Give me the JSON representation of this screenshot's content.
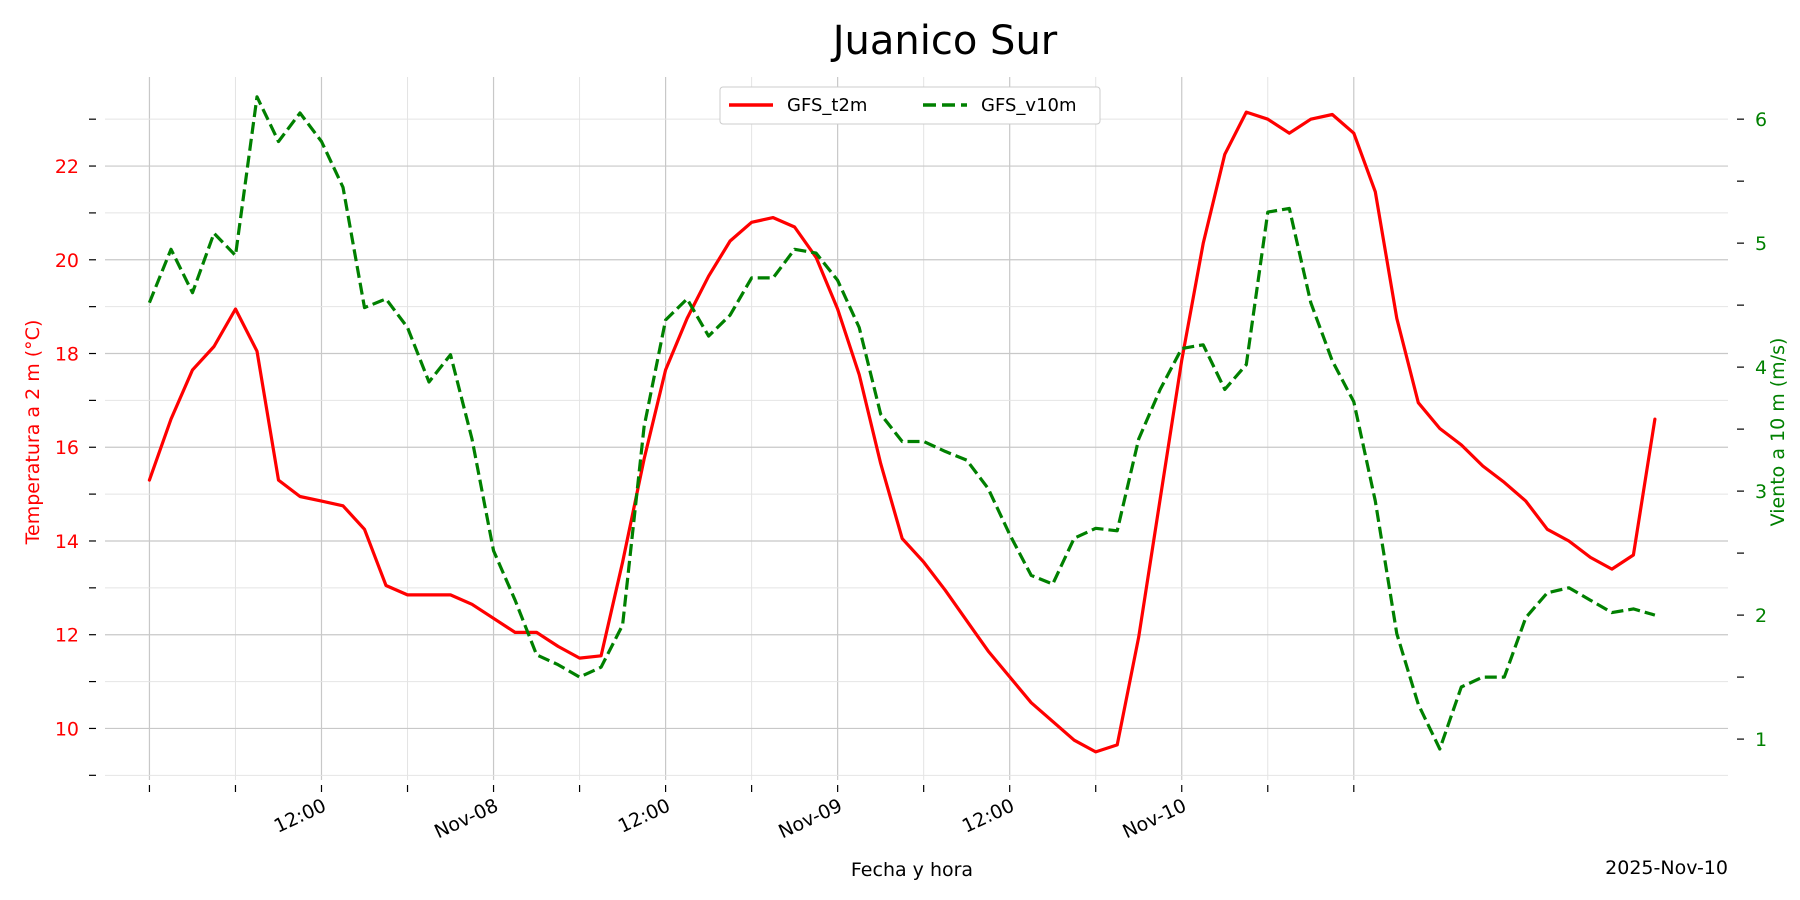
{
  "chart_data": {
    "type": "line",
    "title": "Juanico Sur",
    "xlabel": "Fecha y hora",
    "ylabel_left": "Temperatura a 2 m (°C)",
    "ylabel_right": "Viento a 10 m (m/s)",
    "corner_date": "2025-Nov-10",
    "x_start": "2025-11-07 09:00",
    "x_step_hours": 1.5,
    "ylim_left": [
      8.9,
      23.9
    ],
    "ylim_right": [
      0.67,
      6.34
    ],
    "yticks_left": [
      10,
      12,
      14,
      16,
      18,
      20,
      22
    ],
    "yticks_right": [
      1,
      2,
      3,
      4,
      5,
      6
    ],
    "xticks": [
      {
        "label": "12:00",
        "hour": 12
      },
      {
        "label": "Nov-08",
        "hour": 24
      },
      {
        "label": "12:00",
        "hour": 36
      },
      {
        "label": "Nov-09",
        "hour": 48
      },
      {
        "label": "12:00",
        "hour": 60
      },
      {
        "label": "Nov-10",
        "hour": 72
      }
    ],
    "grid": true,
    "legend": "top-center",
    "series": [
      {
        "name": "GFS_t2m",
        "axis": "left",
        "color": "#ff0000",
        "style": "solid",
        "values": [
          15.3,
          16.6,
          17.65,
          18.15,
          18.95,
          18.05,
          15.3,
          14.95,
          14.85,
          14.75,
          14.25,
          13.05,
          12.85,
          12.85,
          12.85,
          12.65,
          12.35,
          12.05,
          12.05,
          11.75,
          11.5,
          11.55,
          13.55,
          15.75,
          17.65,
          18.75,
          19.65,
          20.4,
          20.8,
          20.9,
          20.7,
          20.05,
          18.95,
          17.55,
          15.65,
          14.05,
          13.55,
          12.95,
          12.3,
          11.65,
          11.1,
          10.55,
          10.15,
          9.75,
          9.5,
          9.65,
          11.95,
          14.9,
          17.85,
          20.35,
          22.25,
          23.15,
          23.0,
          22.7,
          23.0,
          23.1,
          22.7,
          21.45,
          18.75,
          16.95,
          16.4,
          16.05,
          15.6,
          15.25,
          14.85,
          14.25,
          14.0,
          13.65,
          13.4,
          13.7,
          16.6
        ]
      },
      {
        "name": "GFS_v10m",
        "axis": "right",
        "color": "#008000",
        "style": "dashed",
        "values": [
          4.52,
          4.95,
          4.6,
          5.08,
          4.9,
          6.18,
          5.82,
          6.05,
          5.82,
          5.45,
          4.48,
          4.55,
          4.32,
          3.88,
          4.1,
          3.42,
          2.52,
          2.12,
          1.68,
          1.6,
          1.5,
          1.58,
          1.92,
          3.52,
          4.38,
          4.55,
          4.25,
          4.42,
          4.72,
          4.72,
          4.95,
          4.92,
          4.7,
          4.32,
          3.62,
          3.4,
          3.4,
          3.32,
          3.25,
          3.02,
          2.65,
          2.32,
          2.25,
          2.62,
          2.7,
          2.68,
          3.42,
          3.82,
          4.15,
          4.18,
          3.82,
          4.02,
          5.25,
          5.28,
          4.52,
          4.05,
          3.72,
          2.92,
          1.85,
          1.28,
          0.92,
          1.42,
          1.5,
          1.5,
          1.98,
          2.18,
          2.22,
          2.12,
          2.02,
          2.05,
          2.0
        ]
      }
    ]
  }
}
